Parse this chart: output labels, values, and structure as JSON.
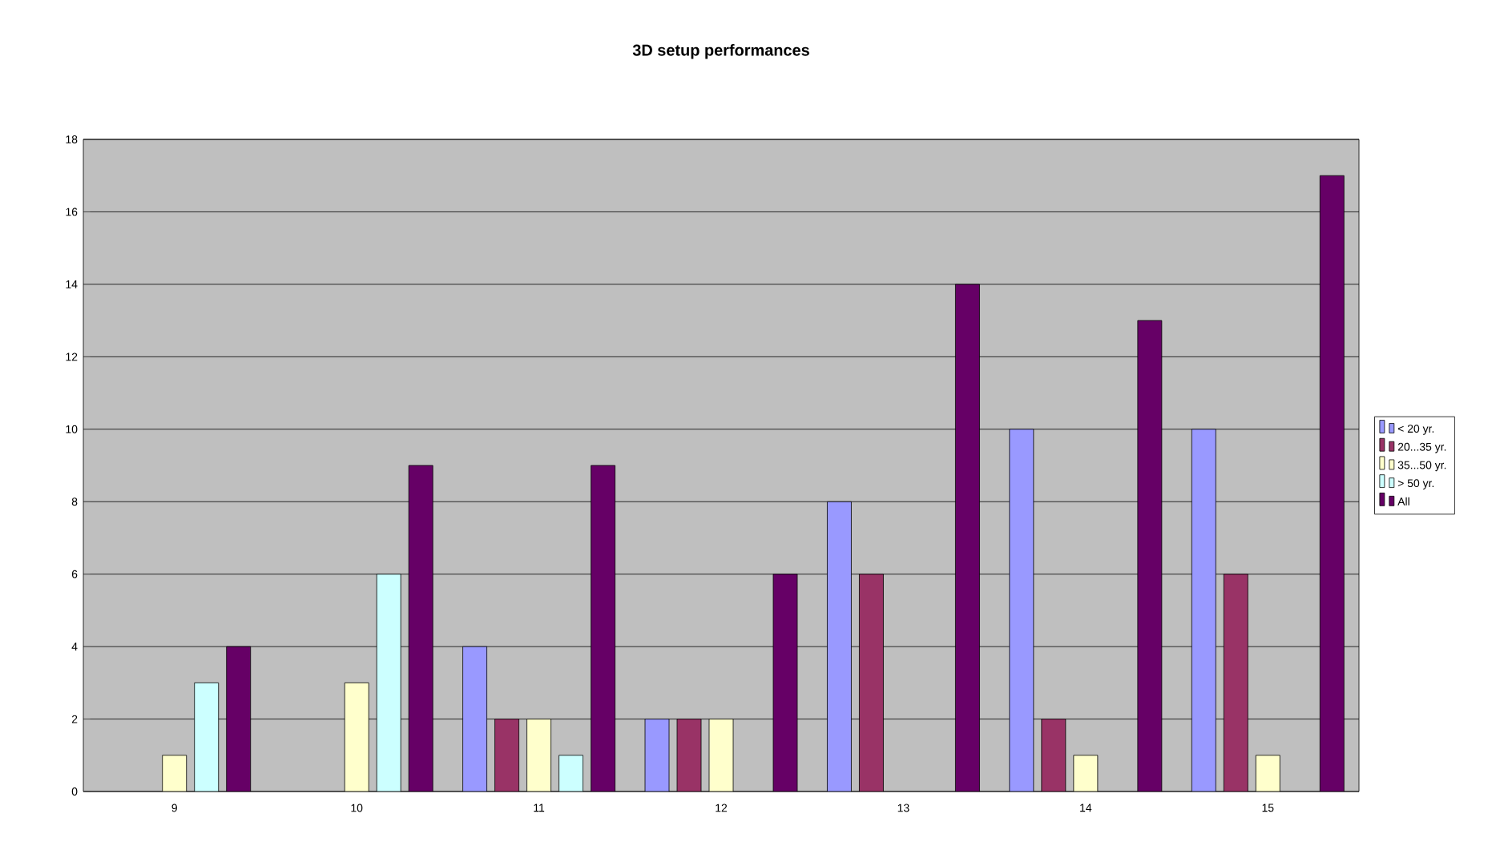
{
  "chart_data": {
    "type": "bar",
    "title": "3D setup performances",
    "categories": [
      "9",
      "10",
      "11",
      "12",
      "13",
      "14",
      "15"
    ],
    "series": [
      {
        "name": "< 20 yr.",
        "color": "#9999ff",
        "values": [
          0,
          0,
          4,
          2,
          8,
          10,
          10
        ]
      },
      {
        "name": "20...35 yr.",
        "color": "#993366",
        "values": [
          0,
          0,
          2,
          2,
          6,
          2,
          6
        ]
      },
      {
        "name": "35...50 yr.",
        "color": "#ffffcc",
        "values": [
          1,
          3,
          2,
          2,
          0,
          1,
          1
        ]
      },
      {
        "name": "> 50 yr.",
        "color": "#ccffff",
        "values": [
          3,
          6,
          1,
          0,
          0,
          0,
          0
        ]
      },
      {
        "name": "All",
        "color": "#660066",
        "values": [
          4,
          9,
          9,
          6,
          14,
          13,
          17
        ]
      }
    ],
    "ylim": [
      0,
      18
    ],
    "yticks": [
      0,
      2,
      4,
      6,
      8,
      10,
      12,
      14,
      16,
      18
    ],
    "grid": "y",
    "legend": "right"
  }
}
